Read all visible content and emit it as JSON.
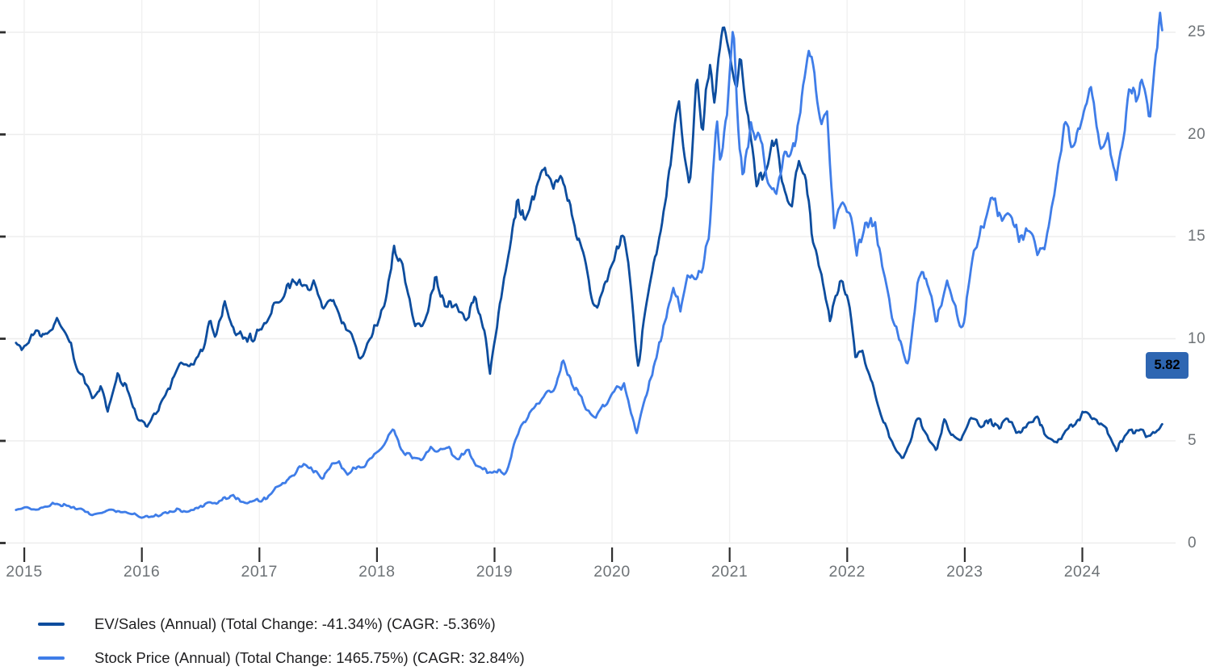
{
  "chart_data": {
    "type": "line",
    "x_axis": {
      "ticks": [
        2015,
        2016,
        2017,
        2018,
        2019,
        2020,
        2021,
        2022,
        2023,
        2024
      ],
      "range": [
        2014.9,
        2024.78
      ]
    },
    "y_axis": {
      "ticks": [
        0,
        5,
        10,
        15,
        20,
        25
      ],
      "range": [
        0,
        26.6
      ],
      "side": "right"
    },
    "grid": true,
    "legend_position": "bottom-left",
    "colors": {
      "background": "#ffffff",
      "gridline": "#ededed",
      "tick": "#2f2f2f",
      "axis_text": "#6e7377"
    },
    "last_value_badge": {
      "text": "5.82",
      "color": "#2e66b2",
      "series": "EV/Sales (Annual)"
    },
    "series": [
      {
        "name": "EV/Sales (Annual)",
        "label": "EV/Sales (Annual) (Total Change: -41.34%) (CAGR: -5.36%)",
        "total_change_pct": -41.34,
        "cagr_pct": -5.36,
        "color": "#0d4d9e",
        "last_value": 5.82,
        "points": [
          [
            2014.93,
            9.8
          ],
          [
            2015.0,
            9.6
          ],
          [
            2015.08,
            10.1
          ],
          [
            2015.17,
            10.3
          ],
          [
            2015.28,
            10.9
          ],
          [
            2015.38,
            10.0
          ],
          [
            2015.46,
            8.6
          ],
          [
            2015.58,
            7.0
          ],
          [
            2015.65,
            7.7
          ],
          [
            2015.71,
            6.4
          ],
          [
            2015.79,
            8.2
          ],
          [
            2015.88,
            7.6
          ],
          [
            2015.96,
            6.3
          ],
          [
            2016.06,
            5.8
          ],
          [
            2016.15,
            6.6
          ],
          [
            2016.25,
            7.8
          ],
          [
            2016.33,
            8.9
          ],
          [
            2016.42,
            8.5
          ],
          [
            2016.5,
            9.3
          ],
          [
            2016.58,
            10.9
          ],
          [
            2016.63,
            10.1
          ],
          [
            2016.71,
            11.7
          ],
          [
            2016.79,
            10.5
          ],
          [
            2016.88,
            9.9
          ],
          [
            2016.96,
            10.3
          ],
          [
            2017.04,
            10.8
          ],
          [
            2017.13,
            11.3
          ],
          [
            2017.21,
            12.0
          ],
          [
            2017.3,
            13.3
          ],
          [
            2017.38,
            12.3
          ],
          [
            2017.46,
            12.8
          ],
          [
            2017.54,
            11.4
          ],
          [
            2017.63,
            12.0
          ],
          [
            2017.71,
            10.8
          ],
          [
            2017.79,
            10.0
          ],
          [
            2017.85,
            9.0
          ],
          [
            2017.92,
            10.0
          ],
          [
            2018.0,
            10.8
          ],
          [
            2018.08,
            12.0
          ],
          [
            2018.15,
            14.8
          ],
          [
            2018.23,
            13.2
          ],
          [
            2018.33,
            10.8
          ],
          [
            2018.42,
            11.3
          ],
          [
            2018.5,
            12.7
          ],
          [
            2018.58,
            11.4
          ],
          [
            2018.67,
            12.1
          ],
          [
            2018.75,
            10.6
          ],
          [
            2018.83,
            11.8
          ],
          [
            2018.92,
            10.4
          ],
          [
            2018.96,
            8.3
          ],
          [
            2019.04,
            11.4
          ],
          [
            2019.13,
            14.3
          ],
          [
            2019.19,
            16.8
          ],
          [
            2019.25,
            15.6
          ],
          [
            2019.33,
            16.4
          ],
          [
            2019.43,
            18.9
          ],
          [
            2019.5,
            17.6
          ],
          [
            2019.57,
            18.2
          ],
          [
            2019.65,
            16.5
          ],
          [
            2019.72,
            14.7
          ],
          [
            2019.81,
            12.6
          ],
          [
            2019.86,
            11.6
          ],
          [
            2019.94,
            12.8
          ],
          [
            2020.02,
            13.5
          ],
          [
            2020.1,
            15.6
          ],
          [
            2020.16,
            13.0
          ],
          [
            2020.22,
            8.6
          ],
          [
            2020.3,
            12.0
          ],
          [
            2020.38,
            14.5
          ],
          [
            2020.44,
            16.5
          ],
          [
            2020.5,
            18.8
          ],
          [
            2020.57,
            21.4
          ],
          [
            2020.62,
            19.0
          ],
          [
            2020.66,
            17.5
          ],
          [
            2020.72,
            23.0
          ],
          [
            2020.77,
            20.0
          ],
          [
            2020.83,
            23.3
          ],
          [
            2020.87,
            22.0
          ],
          [
            2020.94,
            25.7
          ],
          [
            2021.0,
            24.0
          ],
          [
            2021.06,
            22.3
          ],
          [
            2021.09,
            24.2
          ],
          [
            2021.16,
            21.0
          ],
          [
            2021.23,
            17.5
          ],
          [
            2021.3,
            18.5
          ],
          [
            2021.39,
            19.3
          ],
          [
            2021.46,
            17.0
          ],
          [
            2021.53,
            16.3
          ],
          [
            2021.59,
            18.4
          ],
          [
            2021.65,
            17.8
          ],
          [
            2021.71,
            15.0
          ],
          [
            2021.78,
            13.0
          ],
          [
            2021.85,
            10.9
          ],
          [
            2021.9,
            12.2
          ],
          [
            2021.96,
            12.9
          ],
          [
            2022.02,
            11.5
          ],
          [
            2022.07,
            8.9
          ],
          [
            2022.13,
            9.6
          ],
          [
            2022.19,
            8.4
          ],
          [
            2022.25,
            7.0
          ],
          [
            2022.31,
            5.7
          ],
          [
            2022.38,
            5.0
          ],
          [
            2022.47,
            4.1
          ],
          [
            2022.55,
            5.2
          ],
          [
            2022.6,
            6.3
          ],
          [
            2022.67,
            5.5
          ],
          [
            2022.76,
            4.5
          ],
          [
            2022.83,
            5.9
          ],
          [
            2022.9,
            5.2
          ],
          [
            2022.97,
            5.0
          ],
          [
            2023.05,
            6.0
          ],
          [
            2023.13,
            5.6
          ],
          [
            2023.21,
            6.1
          ],
          [
            2023.3,
            5.7
          ],
          [
            2023.38,
            6.0
          ],
          [
            2023.46,
            5.3
          ],
          [
            2023.54,
            5.6
          ],
          [
            2023.63,
            6.0
          ],
          [
            2023.71,
            5.2
          ],
          [
            2023.79,
            4.8
          ],
          [
            2023.88,
            5.6
          ],
          [
            2023.96,
            5.9
          ],
          [
            2024.04,
            6.3
          ],
          [
            2024.13,
            6.0
          ],
          [
            2024.21,
            5.7
          ],
          [
            2024.29,
            4.5
          ],
          [
            2024.38,
            5.3
          ],
          [
            2024.46,
            5.6
          ],
          [
            2024.54,
            5.1
          ],
          [
            2024.6,
            5.5
          ],
          [
            2024.68,
            5.82
          ]
        ]
      },
      {
        "name": "Stock Price (Annual)",
        "label": "Stock Price (Annual) (Total Change: 1465.75%) (CAGR: 32.84%)",
        "total_change_pct": 1465.75,
        "cagr_pct": 32.84,
        "color": "#3f7de8",
        "last_value": 25.1,
        "points": [
          [
            2014.93,
            1.62
          ],
          [
            2015.0,
            1.65
          ],
          [
            2015.08,
            1.7
          ],
          [
            2015.17,
            1.8
          ],
          [
            2015.25,
            1.85
          ],
          [
            2015.33,
            1.75
          ],
          [
            2015.42,
            1.65
          ],
          [
            2015.5,
            1.55
          ],
          [
            2015.58,
            1.35
          ],
          [
            2015.67,
            1.5
          ],
          [
            2015.75,
            1.55
          ],
          [
            2015.83,
            1.45
          ],
          [
            2015.92,
            1.35
          ],
          [
            2016.0,
            1.25
          ],
          [
            2016.08,
            1.35
          ],
          [
            2016.17,
            1.45
          ],
          [
            2016.25,
            1.55
          ],
          [
            2016.33,
            1.65
          ],
          [
            2016.42,
            1.7
          ],
          [
            2016.5,
            1.8
          ],
          [
            2016.58,
            1.95
          ],
          [
            2016.67,
            2.1
          ],
          [
            2016.75,
            2.25
          ],
          [
            2016.83,
            2.1
          ],
          [
            2016.92,
            2.0
          ],
          [
            2017.0,
            2.05
          ],
          [
            2017.08,
            2.3
          ],
          [
            2017.17,
            2.8
          ],
          [
            2017.25,
            3.1
          ],
          [
            2017.33,
            3.8
          ],
          [
            2017.4,
            3.95
          ],
          [
            2017.47,
            3.5
          ],
          [
            2017.54,
            3.3
          ],
          [
            2017.61,
            3.8
          ],
          [
            2017.68,
            3.9
          ],
          [
            2017.75,
            3.3
          ],
          [
            2017.83,
            3.6
          ],
          [
            2017.9,
            4.0
          ],
          [
            2017.98,
            4.5
          ],
          [
            2018.06,
            4.8
          ],
          [
            2018.14,
            5.4
          ],
          [
            2018.22,
            4.5
          ],
          [
            2018.3,
            4.3
          ],
          [
            2018.38,
            4.1
          ],
          [
            2018.46,
            4.7
          ],
          [
            2018.54,
            4.6
          ],
          [
            2018.62,
            4.6
          ],
          [
            2018.7,
            4.2
          ],
          [
            2018.78,
            4.6
          ],
          [
            2018.86,
            3.8
          ],
          [
            2018.94,
            3.4
          ],
          [
            2019.02,
            3.7
          ],
          [
            2019.1,
            3.5
          ],
          [
            2019.17,
            4.8
          ],
          [
            2019.25,
            6.0
          ],
          [
            2019.33,
            6.5
          ],
          [
            2019.42,
            7.2
          ],
          [
            2019.5,
            7.6
          ],
          [
            2019.58,
            8.8
          ],
          [
            2019.63,
            8.2
          ],
          [
            2019.7,
            7.6
          ],
          [
            2019.78,
            6.6
          ],
          [
            2019.86,
            6.0
          ],
          [
            2019.94,
            7.0
          ],
          [
            2020.02,
            7.4
          ],
          [
            2020.1,
            7.9
          ],
          [
            2020.16,
            6.6
          ],
          [
            2020.21,
            5.6
          ],
          [
            2020.29,
            7.2
          ],
          [
            2020.37,
            8.8
          ],
          [
            2020.45,
            10.6
          ],
          [
            2020.52,
            12.4
          ],
          [
            2020.58,
            11.6
          ],
          [
            2020.65,
            13.3
          ],
          [
            2020.7,
            13.0
          ],
          [
            2020.77,
            13.5
          ],
          [
            2020.83,
            15.5
          ],
          [
            2020.89,
            20.8
          ],
          [
            2020.92,
            18.2
          ],
          [
            2020.98,
            21.0
          ],
          [
            2021.03,
            24.9
          ],
          [
            2021.08,
            19.5
          ],
          [
            2021.11,
            18.3
          ],
          [
            2021.18,
            20.7
          ],
          [
            2021.25,
            20.2
          ],
          [
            2021.32,
            18.0
          ],
          [
            2021.39,
            17.0
          ],
          [
            2021.47,
            19.0
          ],
          [
            2021.54,
            19.6
          ],
          [
            2021.6,
            21.5
          ],
          [
            2021.67,
            24.6
          ],
          [
            2021.73,
            22.3
          ],
          [
            2021.78,
            20.3
          ],
          [
            2021.83,
            21.4
          ],
          [
            2021.89,
            15.5
          ],
          [
            2021.96,
            17.2
          ],
          [
            2022.02,
            16.5
          ],
          [
            2022.08,
            14.2
          ],
          [
            2022.15,
            15.8
          ],
          [
            2022.23,
            15.9
          ],
          [
            2022.3,
            13.3
          ],
          [
            2022.37,
            11.5
          ],
          [
            2022.44,
            10.3
          ],
          [
            2022.52,
            8.8
          ],
          [
            2022.6,
            13.0
          ],
          [
            2022.67,
            12.8
          ],
          [
            2022.76,
            10.5
          ],
          [
            2022.85,
            12.9
          ],
          [
            2022.92,
            11.5
          ],
          [
            2022.98,
            10.6
          ],
          [
            2023.06,
            13.8
          ],
          [
            2023.15,
            15.4
          ],
          [
            2023.23,
            16.8
          ],
          [
            2023.31,
            16.0
          ],
          [
            2023.38,
            16.2
          ],
          [
            2023.46,
            15.0
          ],
          [
            2023.54,
            15.8
          ],
          [
            2023.62,
            13.8
          ],
          [
            2023.7,
            15.0
          ],
          [
            2023.78,
            17.5
          ],
          [
            2023.85,
            20.8
          ],
          [
            2023.92,
            19.5
          ],
          [
            2024.0,
            21.0
          ],
          [
            2024.07,
            22.6
          ],
          [
            2024.15,
            19.2
          ],
          [
            2024.22,
            19.8
          ],
          [
            2024.29,
            17.2
          ],
          [
            2024.35,
            20.0
          ],
          [
            2024.4,
            22.2
          ],
          [
            2024.46,
            21.3
          ],
          [
            2024.52,
            22.1
          ],
          [
            2024.57,
            20.3
          ],
          [
            2024.62,
            23.5
          ],
          [
            2024.66,
            25.8
          ],
          [
            2024.68,
            25.1
          ]
        ]
      }
    ]
  }
}
